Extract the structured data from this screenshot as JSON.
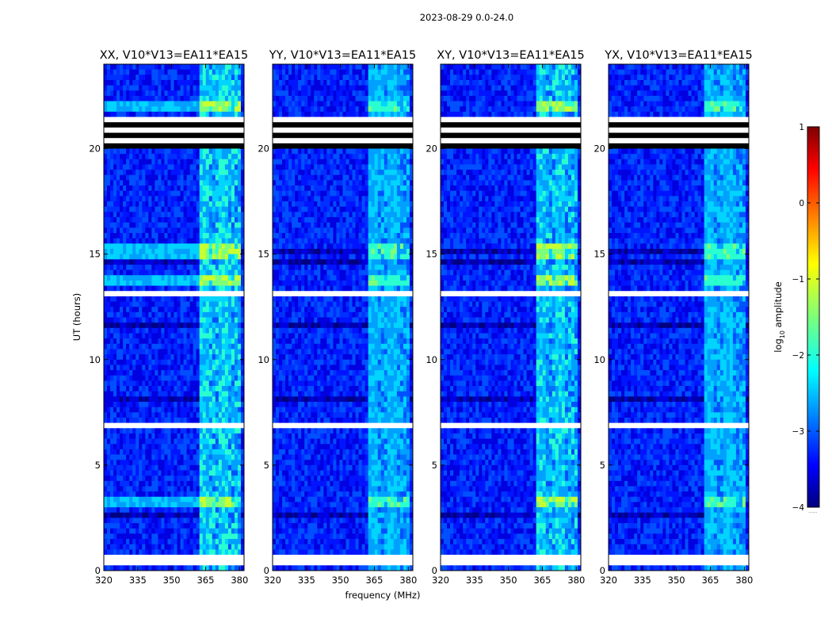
{
  "figure": {
    "suptitle": "2023-08-29 0.0-24.0"
  },
  "chart_data": {
    "type": "heatmap",
    "description_units": "waterfall: frequency vs UT, color = log10 amplitude",
    "xlabel": "frequency (MHz)",
    "ylabel": "UT (hours)",
    "xlim": [
      320,
      382
    ],
    "ylim": [
      0,
      24
    ],
    "xticks": [
      320,
      335,
      350,
      365,
      380
    ],
    "yticks": [
      0,
      5,
      10,
      15,
      20
    ],
    "panels": [
      {
        "title": "XX, V10*V13=EA11*EA15",
        "pol": "XX",
        "strength": 1.0
      },
      {
        "title": "YY, V10*V13=EA11*EA15",
        "pol": "YY",
        "strength": 0.6
      },
      {
        "title": "XY, V10*V13=EA11*EA15",
        "pol": "XY",
        "strength": 0.85
      },
      {
        "title": "YX, V10*V13=EA11*EA15",
        "pol": "YX",
        "strength": 0.65
      }
    ],
    "rfi_band_mhz": [
      362,
      380
    ],
    "bright_times_ut": [
      3.2,
      13.7,
      15.1,
      22.0
    ],
    "black_gap_ut": [
      [
        20.1,
        21.4
      ]
    ],
    "colorbar": {
      "label_prefix": "log",
      "label_sub": "10",
      "label_suffix": " amplitude",
      "range": [
        -4,
        1
      ],
      "ticks": [
        1,
        0,
        -1,
        -2,
        -3,
        -4
      ],
      "tick_labels": [
        "1",
        "0",
        "−1",
        "−2",
        "−3",
        "−4"
      ],
      "colormap": "jet",
      "footnote": "......"
    }
  }
}
